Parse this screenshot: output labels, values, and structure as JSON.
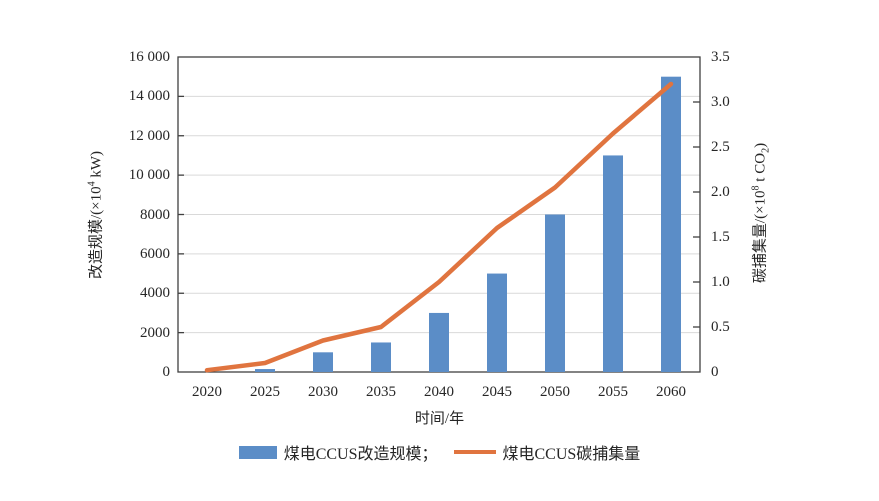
{
  "chart_data": {
    "type": "bar+line",
    "categories": [
      "2020",
      "2025",
      "2030",
      "2035",
      "2040",
      "2045",
      "2050",
      "2055",
      "2060"
    ],
    "series": [
      {
        "name": "煤电CCUS改造规模",
        "type": "bar",
        "axis": "left",
        "color": "#5B8DC7",
        "values": [
          0,
          150,
          1000,
          1500,
          3000,
          5000,
          8000,
          11000,
          15000
        ]
      },
      {
        "name": "煤电CCUS碳捕集量",
        "type": "line",
        "axis": "right",
        "color": "#E0743F",
        "values": [
          0.02,
          0.1,
          0.35,
          0.5,
          1.0,
          1.6,
          2.05,
          2.65,
          3.2
        ]
      }
    ],
    "xlabel": "时间/年",
    "left_axis": {
      "min": 0,
      "max": 16000,
      "step": 2000,
      "tick_labels": [
        "0",
        "2000",
        "4000",
        "6000",
        "8000",
        "10 000",
        "12 000",
        "14 000",
        "16 000"
      ],
      "label_parts": {
        "pre": "改造规模/(×10",
        "sup": "4",
        "post": " kW)"
      }
    },
    "right_axis": {
      "min": 0,
      "max": 3.5,
      "step": 0.5,
      "tick_labels": [
        "0",
        "0.5",
        "1.0",
        "1.5",
        "2.0",
        "2.5",
        "3.0",
        "3.5"
      ],
      "label_parts": {
        "pre": "碳捕集量/(×10",
        "sup": "8",
        "mid": " t CO",
        "sub": "2",
        "post": ")"
      }
    },
    "grid": true,
    "legend_position": "bottom",
    "legend": [
      {
        "label": "煤电CCUS改造规模；",
        "swatch": "bar"
      },
      {
        "label": "煤电CCUS碳捕集量",
        "swatch": "line"
      }
    ],
    "colors": {
      "grid": "#D9D9D9",
      "axis": "#404040",
      "text": "#262626"
    }
  }
}
